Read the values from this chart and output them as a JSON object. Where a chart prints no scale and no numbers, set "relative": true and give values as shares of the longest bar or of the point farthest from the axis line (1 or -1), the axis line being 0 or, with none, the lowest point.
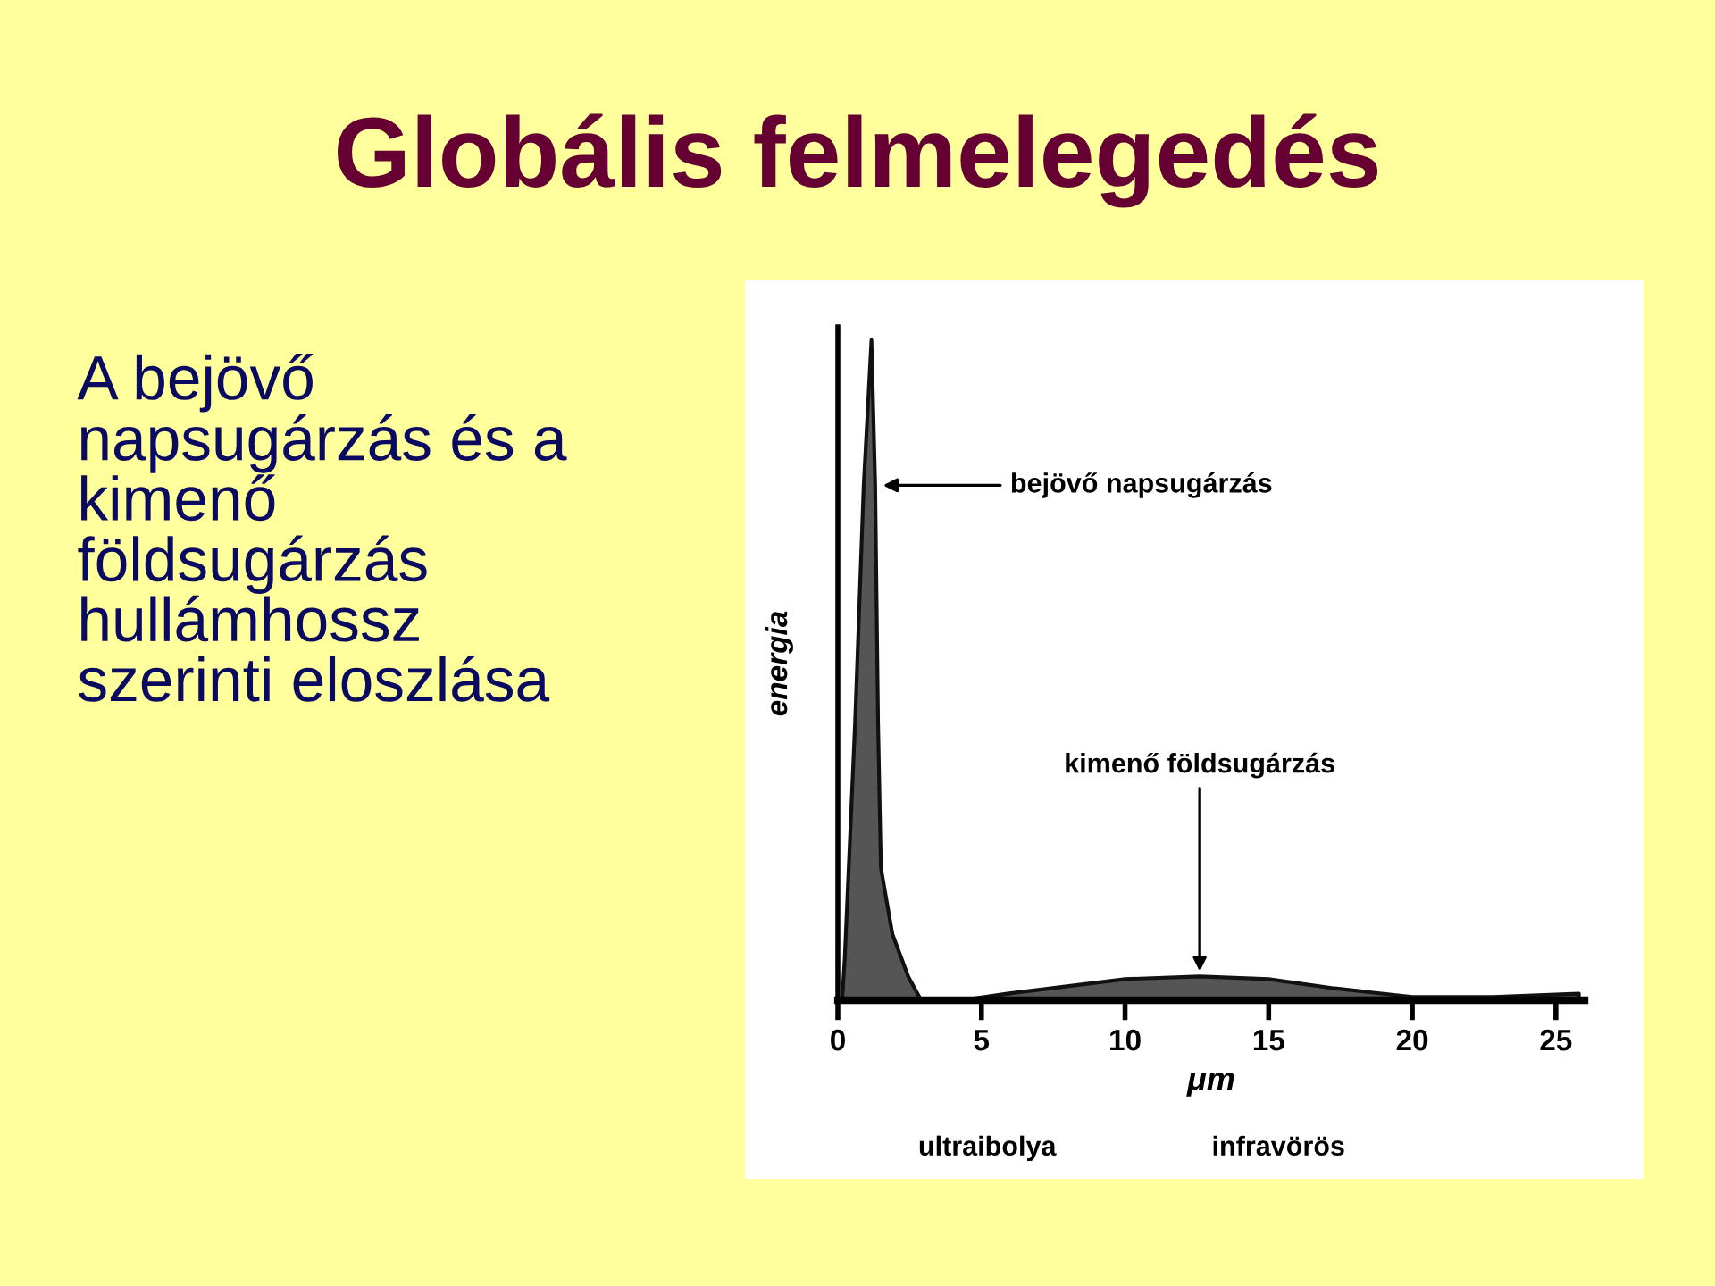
{
  "chart_data": {
    "type": "area",
    "title": "Globális felmelegedés",
    "subtitle": "A bejövő napsugárzás és a kimenő földsugárzás hullámhossz szerinti eloszlása",
    "relative": true,
    "xlabel": "μm",
    "ylabel": "energia",
    "xlim": [
      0,
      26
    ],
    "xticks": [
      0,
      5,
      10,
      15,
      20,
      25
    ],
    "tick_labels": "x",
    "grid": false,
    "series": [
      {
        "color": "#555555",
        "x": [
          0.15,
          0.24,
          0.6,
          0.9,
          1.17,
          1.3,
          1.4,
          1.5,
          1.9,
          2.45,
          2.9
        ],
        "values": [
          0,
          0.063,
          0.42,
          0.78,
          1.0,
          0.78,
          0.42,
          0.2,
          0.1,
          0.036,
          0
        ]
      },
      {
        "color": "#555555",
        "x": [
          2.9,
          4.3,
          5.9,
          10.0,
          12.6,
          15.0,
          17.3,
          20.0,
          22.8,
          25.8
        ],
        "values": [
          0,
          0,
          0.01,
          0.032,
          0.036,
          0.032,
          0.018,
          0.005,
          0.005,
          0.01
        ]
      }
    ],
    "annotations": [
      {
        "text": "bejövő napsugárzás",
        "x": 1.4,
        "y": 0.78
      },
      {
        "text": "kimenő földsugárzás",
        "x": 12.6,
        "y": 0.036
      },
      "ultraibolya",
      "infravörös"
    ]
  }
}
